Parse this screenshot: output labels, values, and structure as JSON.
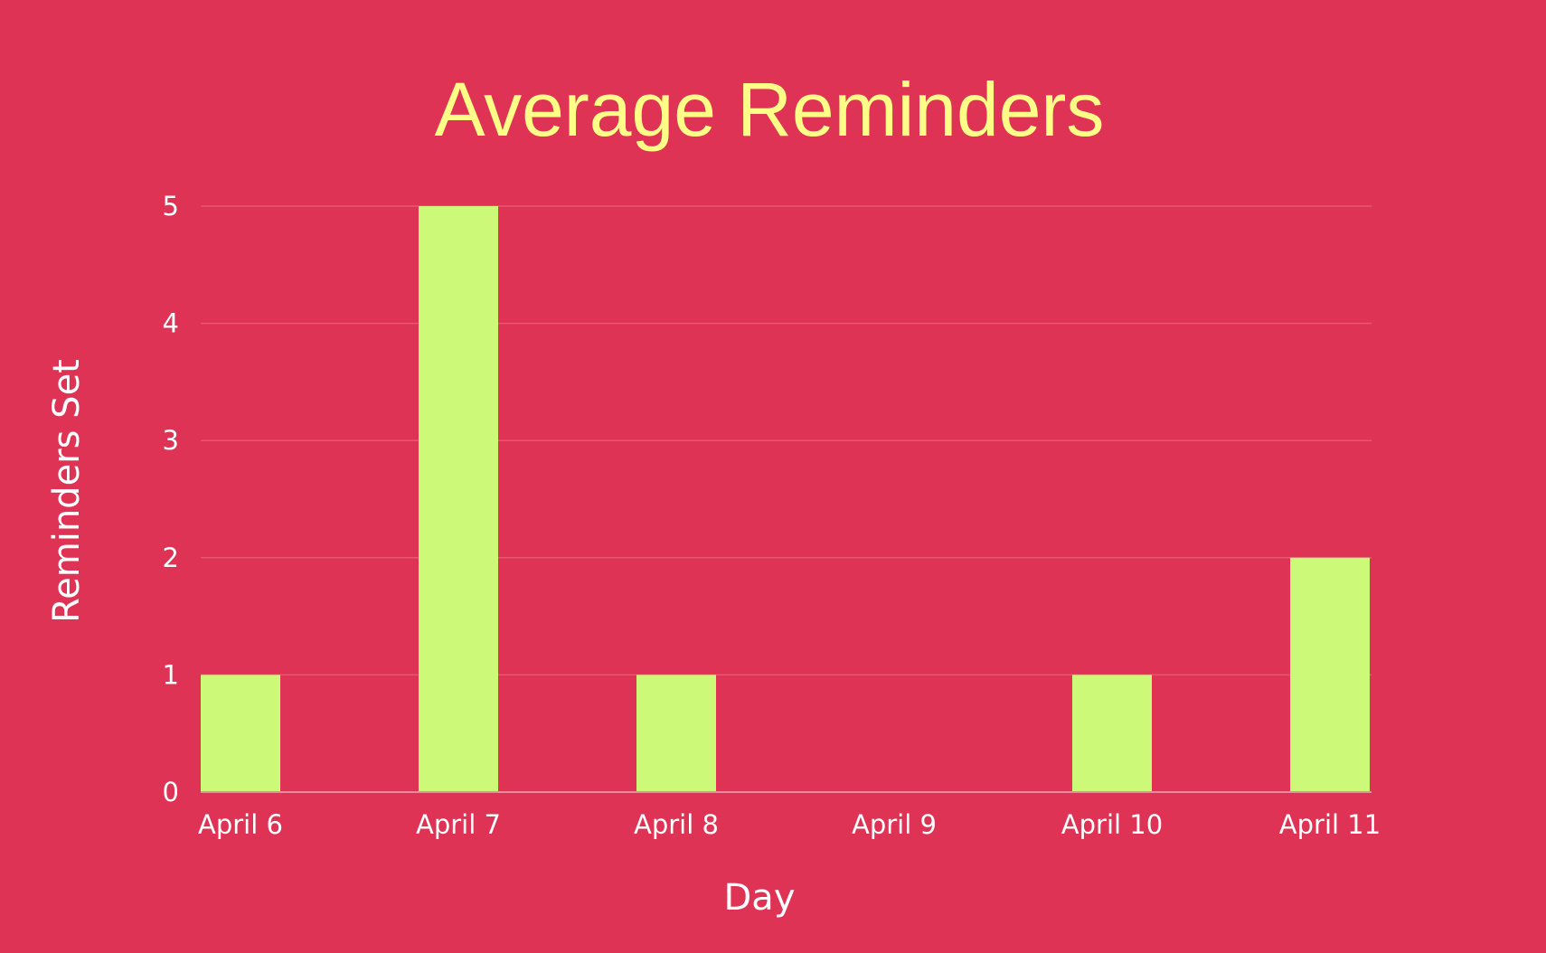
{
  "colors": {
    "background": "#df3355",
    "title": "#ffff88",
    "bar": "#ccf977",
    "text": "#ffffff",
    "gridline": "#e85670",
    "baseline": "#f08aa0"
  },
  "chart_data": {
    "type": "bar",
    "title": "Average Reminders",
    "xlabel": "Day",
    "ylabel": "Reminders Set",
    "categories": [
      "April 6",
      "April 7",
      "April 8",
      "April 9",
      "April 10",
      "April 11"
    ],
    "values": [
      1,
      5,
      1,
      0,
      1,
      2
    ],
    "ylim": [
      0,
      5
    ],
    "yticks": [
      "0",
      "1",
      "2",
      "3",
      "4",
      "5"
    ],
    "grid": true,
    "legend": "none"
  }
}
